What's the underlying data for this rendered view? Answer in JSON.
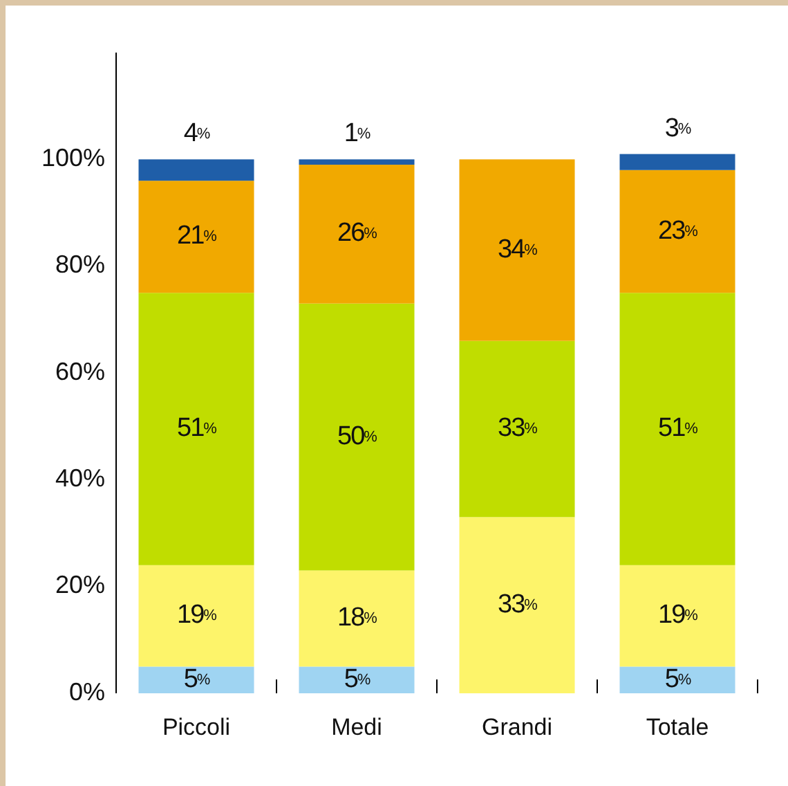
{
  "chart_data": {
    "type": "bar",
    "stacked": true,
    "categories": [
      "Piccoli",
      "Medi",
      "Grandi",
      "Totale"
    ],
    "ylim": [
      0,
      120
    ],
    "yticks": [
      {
        "value": 0,
        "label": "0%"
      },
      {
        "value": 20,
        "label": "20%"
      },
      {
        "value": 40,
        "label": "40%"
      },
      {
        "value": 60,
        "label": "60%"
      },
      {
        "value": 80,
        "label": "80%"
      },
      {
        "value": 100,
        "label": "100%"
      }
    ],
    "grid": false,
    "series": [
      {
        "color": "#9fd4f2",
        "values": [
          5,
          5,
          null,
          5
        ],
        "value_labels": [
          "5%",
          "5%",
          null,
          "5%"
        ]
      },
      {
        "color": "#fdf46a",
        "values": [
          19,
          18,
          33,
          19
        ],
        "value_labels": [
          "19%",
          "18%",
          "33%",
          "19%"
        ]
      },
      {
        "color": "#c0dd00",
        "values": [
          51,
          50,
          33,
          51
        ],
        "value_labels": [
          "51%",
          "50%",
          "33%",
          "51%"
        ]
      },
      {
        "color": "#f1a900",
        "values": [
          21,
          26,
          34,
          23
        ],
        "value_labels": [
          "21%",
          "26%",
          "34%",
          "23%"
        ]
      },
      {
        "color": "#1f5ea8",
        "values": [
          4,
          1,
          null,
          3
        ],
        "value_labels": [
          "4%",
          "1%",
          null,
          "3%"
        ]
      }
    ]
  }
}
